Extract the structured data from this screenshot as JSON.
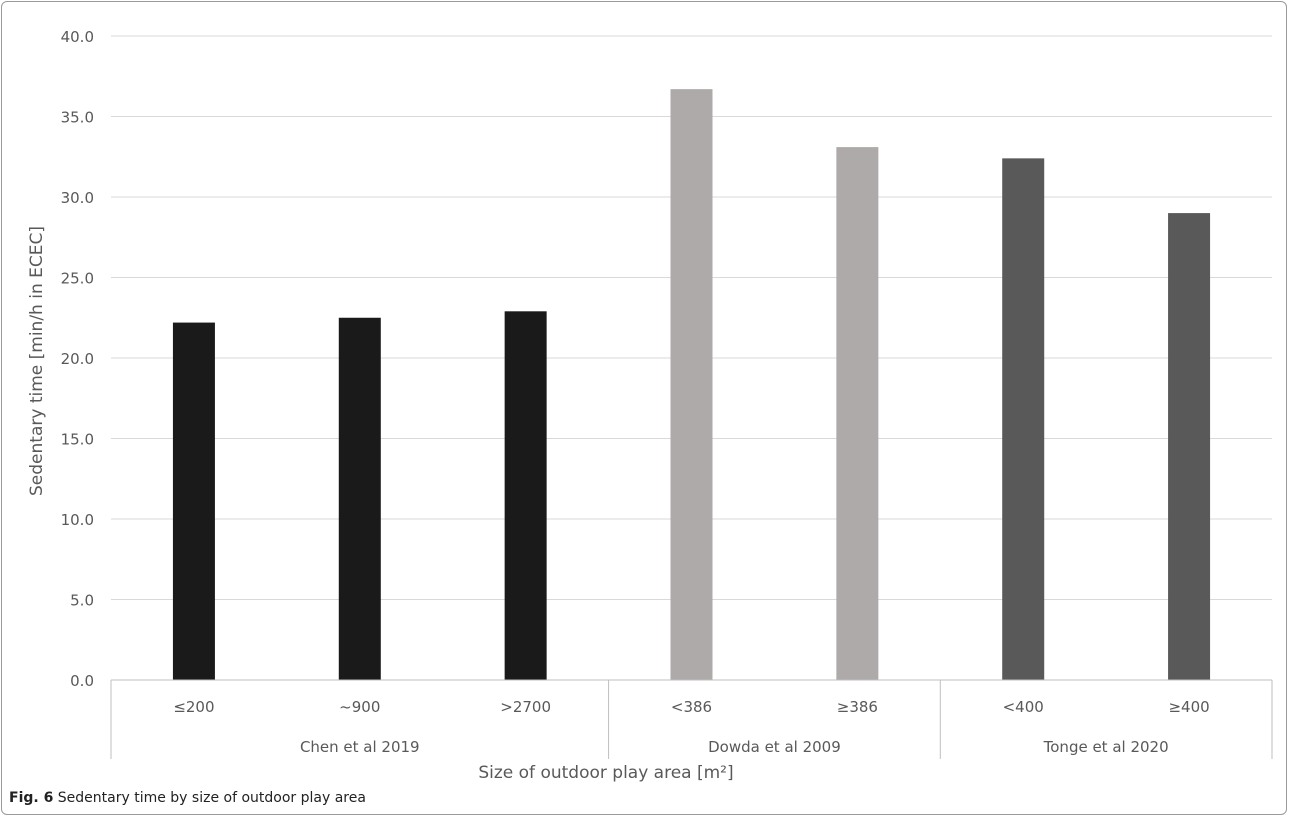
{
  "chart_data": {
    "type": "bar",
    "ylabel": "Sedentary time [min/h in ECEC]",
    "xlabel": "Size of outdoor play area [m²]",
    "ylim": [
      0,
      40
    ],
    "ytick_step": 5,
    "ytick_labels": [
      "0.0",
      "5.0",
      "10.0",
      "15.0",
      "20.0",
      "25.0",
      "30.0",
      "35.0",
      "40.0"
    ],
    "grid": true,
    "groups": [
      {
        "name": "Chen et al 2019",
        "color": "#1a1a1a",
        "categories": [
          "≤200",
          "~900",
          ">2700"
        ],
        "values": [
          22.2,
          22.5,
          22.9
        ]
      },
      {
        "name": "Dowda et al 2009",
        "color": "#aeaaa9",
        "categories": [
          "<386",
          "≥386"
        ],
        "values": [
          36.7,
          33.1
        ]
      },
      {
        "name": "Tonge et al 2020",
        "color": "#595959",
        "categories": [
          "<400",
          "≥400"
        ],
        "values": [
          32.4,
          29.0
        ]
      }
    ]
  },
  "caption": {
    "label": "Fig. 6",
    "text": "Sedentary time by size of outdoor play area"
  }
}
